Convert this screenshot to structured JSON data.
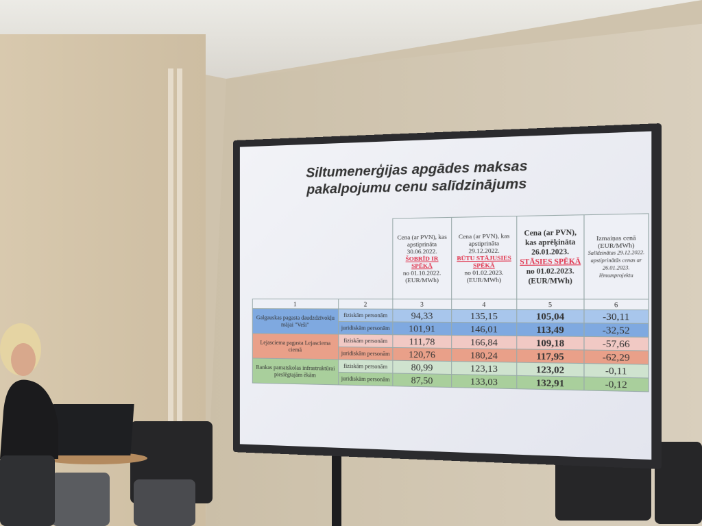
{
  "slide": {
    "title_line1": "Siltumenerģijas apgādes maksas",
    "title_line2": "pakalpojumu cenu salīdzinājums",
    "headers": {
      "c3": {
        "a": "Cena (ar PVN), kas apstiprināta 30.06.2022.",
        "red": "ŠOBRĪD IR SPĒKĀ",
        "b": "no 01.10.2022. (EUR/MWh)"
      },
      "c4": {
        "a": "Cena (ar PVN), kas apstiprināta 29.12.2022.",
        "red": "BŪTU STĀJUSIES SPĒKĀ",
        "b": "no 01.02.2023. (EUR/MWh)"
      },
      "c5": {
        "a": "Cena (ar PVN), kas aprēķināta 26.01.2023.",
        "red": "STĀSIES SPĒKĀ",
        "b": "no 01.02.2023. (EUR/MWh)"
      },
      "c6": {
        "a": "Izmaiņas cenā (EUR/MWh)",
        "note": "Salīdzinātas 29.12.2022. apstiprinātās cenas ar 26.01.2023. lēmumprojektu"
      }
    },
    "column_numbers": [
      "1",
      "2",
      "3",
      "4",
      "5",
      "6"
    ],
    "groups": [
      {
        "label": "Galgauskas pagasta daudzdzīvokļu mājai \"Veši\"",
        "rows": [
          {
            "person": "fiziskām personām",
            "c3": "94,33",
            "c4": "135,15",
            "c5": "105,04",
            "c6": "-30,11"
          },
          {
            "person": "juridiskām personām",
            "c3": "101,91",
            "c4": "146,01",
            "c5": "113,49",
            "c6": "-32,52"
          }
        ]
      },
      {
        "label": "Lejasciema pagasta Lejasciema ciemā",
        "rows": [
          {
            "person": "fiziskām personām",
            "c3": "111,78",
            "c4": "166,84",
            "c5": "109,18",
            "c6": "-57,66"
          },
          {
            "person": "juridiskām personām",
            "c3": "120,76",
            "c4": "180,24",
            "c5": "117,95",
            "c6": "-62,29"
          }
        ]
      },
      {
        "label": "Rankas pamatskolas infrastruktūrai pieslēgtajām ēkām",
        "rows": [
          {
            "person": "fiziskām personām",
            "c3": "80,99",
            "c4": "123,13",
            "c5": "123,02",
            "c6": "-0,11"
          },
          {
            "person": "juridiskām personām",
            "c3": "87,50",
            "c4": "133,03",
            "c5": "132,91",
            "c6": "-0,12"
          }
        ]
      }
    ]
  }
}
